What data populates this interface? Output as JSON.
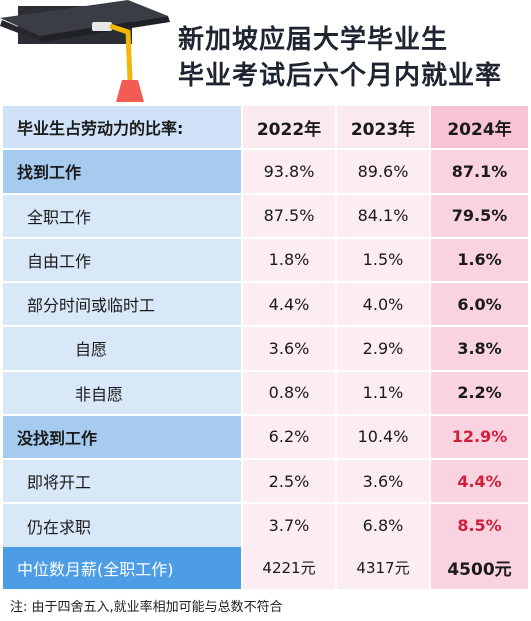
{
  "title": {
    "line1": "新加坡应届大学毕业生",
    "line2": "毕业考试后六个月内就业率"
  },
  "table": {
    "header": {
      "label": "毕业生占劳动力的比率:",
      "years": [
        "2022年",
        "2023年",
        "2024年"
      ]
    },
    "rows": [
      {
        "label": "找到工作",
        "level": 0,
        "values": [
          "93.8%",
          "89.6%",
          "87.1%"
        ],
        "highlight": false
      },
      {
        "label": "全职工作",
        "level": 1,
        "values": [
          "87.5%",
          "84.1%",
          "79.5%"
        ],
        "highlight": false
      },
      {
        "label": "自由工作",
        "level": 1,
        "values": [
          "1.8%",
          "1.5%",
          "1.6%"
        ],
        "highlight": false
      },
      {
        "label": "部分时间或临时工",
        "level": 1,
        "values": [
          "4.4%",
          "4.0%",
          "6.0%"
        ],
        "highlight": false
      },
      {
        "label": "自愿",
        "level": 2,
        "values": [
          "3.6%",
          "2.9%",
          "3.8%"
        ],
        "highlight": false
      },
      {
        "label": "非自愿",
        "level": 2,
        "values": [
          "0.8%",
          "1.1%",
          "2.2%"
        ],
        "highlight": false
      },
      {
        "label": "没找到工作",
        "level": 0,
        "values": [
          "6.2%",
          "10.4%",
          "12.9%"
        ],
        "highlight": true
      },
      {
        "label": "即将开工",
        "level": 1,
        "values": [
          "2.5%",
          "3.6%",
          "4.4%"
        ],
        "highlight": true
      },
      {
        "label": "仍在求职",
        "level": 1,
        "values": [
          "3.7%",
          "6.8%",
          "8.5%"
        ],
        "highlight": true
      }
    ],
    "median": {
      "label": "中位数月薪(全职工作)",
      "values": [
        "4221元",
        "4317元",
        "4500元"
      ]
    }
  },
  "note": "注: 由于四舍五入,就业率相加可能与总数不符合",
  "colors": {
    "label_dark": "#a6cbef",
    "label_light": "#d9e8f8",
    "median_label": "#4d9de6",
    "value_pink": "#fcedf2",
    "value_pink_2024": "#fad3e0",
    "highlight_red": "#d11e3b"
  }
}
